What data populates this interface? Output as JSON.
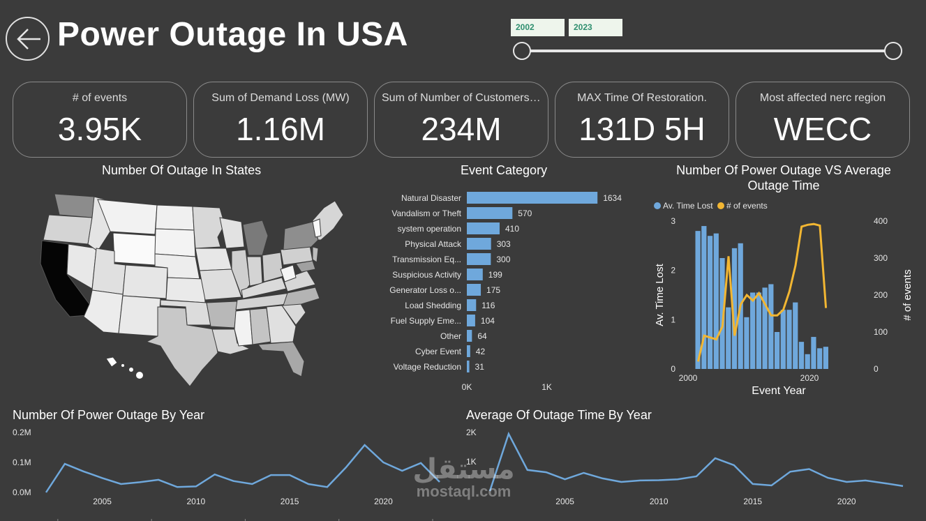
{
  "header": {
    "title": "Power Outage In USA"
  },
  "slider": {
    "start": "2002",
    "end": "2023"
  },
  "cards": [
    {
      "label": "# of events",
      "value": "3.95K"
    },
    {
      "label": "Sum of Demand Loss (MW)",
      "value": "1.16M"
    },
    {
      "label": "Sum of Number of Customers Affected",
      "value": "234M"
    },
    {
      "label": "MAX Time Of Restoration.",
      "value": "131D 5H"
    },
    {
      "label": "Most affected nerc region",
      "value": "WECC"
    }
  ],
  "map": {
    "title": "Number Of Outage In States"
  },
  "colors": {
    "bar": "#6fa8dc",
    "line_orange": "#f2b632",
    "card_border": "#8a8a8a",
    "bg": "#3b3b3b"
  },
  "chart_data": [
    {
      "type": "bar",
      "orientation": "horizontal",
      "title": "Event Category",
      "categories": [
        "Natural Disaster",
        "Vandalism or Theft",
        "system operation",
        "Physical Attack",
        "Transmission Eq...",
        "Suspicious Activity",
        "Generator Loss o...",
        "Load Shedding",
        "Fuel Supply Eme...",
        "Other",
        "Cyber Event",
        "Voltage Reduction"
      ],
      "values": [
        1634,
        570,
        410,
        303,
        300,
        199,
        175,
        116,
        104,
        64,
        42,
        31
      ],
      "x_ticks": [
        "0K",
        "1K"
      ],
      "xlim": [
        0,
        1700
      ]
    },
    {
      "type": "bar+line",
      "title": "Number Of Power Outage VS Average Outage Time",
      "legend": [
        "Av. Time Lost",
        "# of events"
      ],
      "xlabel": "Event Year",
      "ylabel_left": "Av. Time Lost",
      "ylabel_right": "# of events",
      "x": [
        2002,
        2003,
        2004,
        2005,
        2006,
        2007,
        2008,
        2009,
        2010,
        2011,
        2012,
        2013,
        2014,
        2015,
        2016,
        2017,
        2018,
        2019,
        2020,
        2021,
        2022,
        2023
      ],
      "bars": [
        2.8,
        2.9,
        2.7,
        2.75,
        2.25,
        1.25,
        2.45,
        2.55,
        1.05,
        1.55,
        1.55,
        1.65,
        1.72,
        0.75,
        1.2,
        1.2,
        1.35,
        0.55,
        0.3,
        0.65,
        0.42,
        0.45
      ],
      "line": [
        20,
        90,
        85,
        80,
        115,
        305,
        90,
        175,
        200,
        185,
        205,
        175,
        145,
        145,
        160,
        210,
        280,
        385,
        390,
        392,
        388,
        165
      ],
      "ylim_left": [
        0,
        3
      ],
      "ylim_right": [
        0,
        400
      ],
      "y_ticks_left": [
        "0",
        "1",
        "2",
        "3"
      ],
      "y_ticks_right": [
        "0",
        "100",
        "200",
        "300",
        "400"
      ],
      "x_ticks": [
        "2000",
        "2020"
      ]
    },
    {
      "type": "line",
      "title": "Number Of Power Outage By Year",
      "x": [
        2002,
        2003,
        2004,
        2005,
        2006,
        2007,
        2008,
        2009,
        2010,
        2011,
        2012,
        2013,
        2014,
        2015,
        2016,
        2017,
        2018,
        2019,
        2020,
        2021,
        2022,
        2023
      ],
      "values": [
        0.0,
        0.095,
        0.07,
        0.048,
        0.028,
        0.034,
        0.042,
        0.018,
        0.02,
        0.06,
        0.038,
        0.028,
        0.058,
        0.058,
        0.028,
        0.018,
        0.083,
        0.158,
        0.1,
        0.072,
        0.098,
        0.035
      ],
      "y_ticks": [
        "0.0M",
        "0.1M",
        "0.2M"
      ],
      "ylim": [
        0,
        0.2
      ],
      "x_ticks": [
        "2005",
        "2010",
        "2015",
        "2020"
      ]
    },
    {
      "type": "line",
      "title": "Average Of Outage Time By Year",
      "x": [
        2001,
        2002,
        2003,
        2004,
        2005,
        2006,
        2007,
        2008,
        2009,
        2010,
        2011,
        2012,
        2013,
        2014,
        2015,
        2016,
        2017,
        2018,
        2019,
        2020,
        2021,
        2022,
        2023
      ],
      "values": [
        0,
        1950,
        720,
        640,
        400,
        620,
        430,
        310,
        360,
        370,
        400,
        500,
        1120,
        880,
        240,
        190,
        660,
        750,
        450,
        310,
        360,
        270,
        170
      ],
      "y_ticks": [
        "1K",
        "2K"
      ],
      "ylim": [
        0,
        2000
      ],
      "x_ticks": [
        "2005",
        "2010",
        "2015",
        "2020"
      ]
    }
  ],
  "watermark": {
    "arabic": "مستقل",
    "latin": "mostaql.com"
  }
}
